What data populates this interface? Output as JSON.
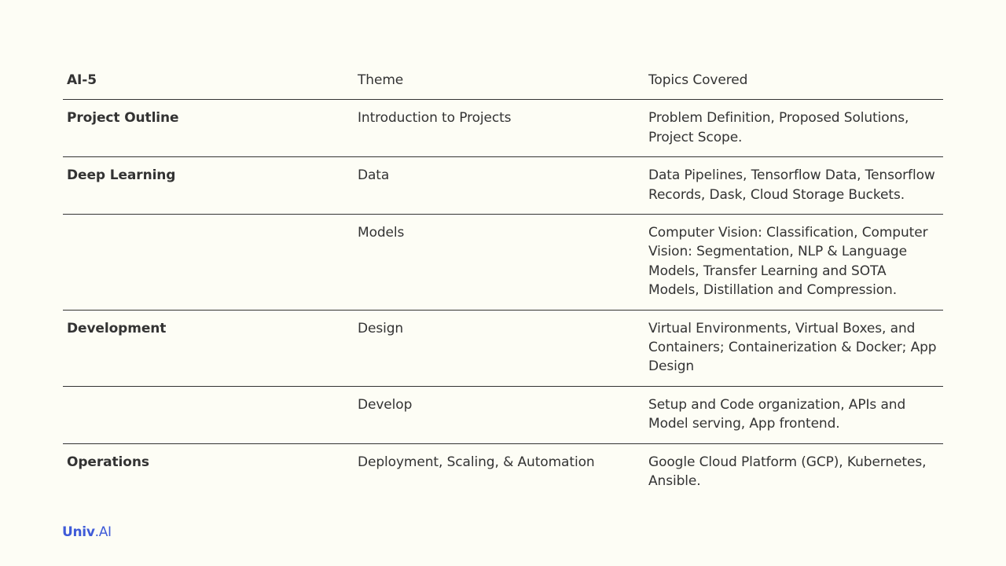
{
  "table": {
    "headers": [
      "AI-5",
      "Theme",
      "Topics Covered"
    ],
    "rows": [
      {
        "section": "Project Outline",
        "theme": "Introduction to Projects",
        "topics": "Problem Definition, Proposed Solutions, Project Scope."
      },
      {
        "section": "Deep Learning",
        "theme": "Data",
        "topics": "Data Pipelines, Tensorflow Data, Tensorflow Records, Dask, Cloud Storage Buckets."
      },
      {
        "section": "",
        "theme": "Models",
        "topics": "Computer Vision: Classification, Computer Vision: Segmentation, NLP & Language Models, Transfer Learning and SOTA Models, Distillation and Compression."
      },
      {
        "section": "Development",
        "theme": "Design",
        "topics": "Virtual Environments, Virtual Boxes, and Containers; Containerization & Docker; App Design"
      },
      {
        "section": "",
        "theme": "Develop",
        "topics": "Setup and Code organization, APIs and Model serving, App frontend."
      },
      {
        "section": "Operations",
        "theme": "Deployment, Scaling, & Automation",
        "topics": "Google Cloud Platform (GCP), Kubernetes, Ansible."
      }
    ]
  },
  "logo": {
    "part1": "Univ",
    "part2": ".AI",
    "color": "#3f5bd8"
  }
}
